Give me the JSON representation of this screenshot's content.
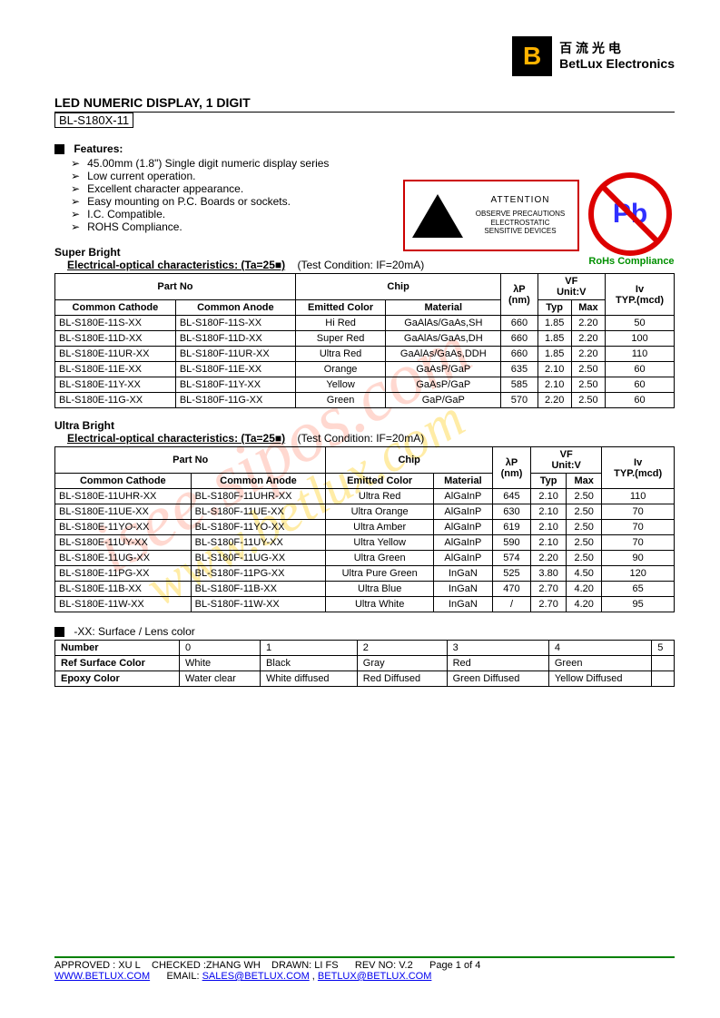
{
  "logo": {
    "letter": "B",
    "cn": "百 流 光 电",
    "en": "BetLux Electronics"
  },
  "title": "LED NUMERIC DISPLAY, 1 DIGIT",
  "part_box": "BL-S180X-11",
  "features_head": "Features:",
  "features": [
    "45.00mm (1.8\") Single digit numeric display series",
    "Low current operation.",
    "Excellent character appearance.",
    "Easy mounting on P.C. Boards or sockets.",
    "I.C. Compatible.",
    "ROHS Compliance."
  ],
  "esd": {
    "attention": "ATTENTION",
    "line1": "OBSERVE PRECAUTIONS",
    "line2": "ELECTROSTATIC",
    "line3": "SENSITIVE DEVICES"
  },
  "pb": {
    "symbol": "Pb",
    "label": "RoHs Compliance"
  },
  "super_head": "Super Bright",
  "eo_label": "Electrical-optical characteristics: (Ta=25■)",
  "cond_label": "(Test Condition: IF=20mA)",
  "thead": {
    "partno": "Part No",
    "cc": "Common Cathode",
    "ca": "Common Anode",
    "chip": "Chip",
    "color": "Emitted Color",
    "material": "Material",
    "lp": "λP",
    "nm": "(nm)",
    "vf": "VF",
    "unitv": "Unit:V",
    "typ": "Typ",
    "max": "Max",
    "iv": "Iv",
    "ivunit": "TYP.(mcd)"
  },
  "super_rows": [
    {
      "cc": "BL-S180E-11S-XX",
      "ca": "BL-S180F-11S-XX",
      "color": "Hi Red",
      "mat": "GaAlAs/GaAs,SH",
      "lp": "660",
      "typ": "1.85",
      "max": "2.20",
      "iv": "50"
    },
    {
      "cc": "BL-S180E-11D-XX",
      "ca": "BL-S180F-11D-XX",
      "color": "Super Red",
      "mat": "GaAlAs/GaAs,DH",
      "lp": "660",
      "typ": "1.85",
      "max": "2.20",
      "iv": "100"
    },
    {
      "cc": "BL-S180E-11UR-XX",
      "ca": "BL-S180F-11UR-XX",
      "color": "Ultra Red",
      "mat": "GaAlAs/GaAs,DDH",
      "lp": "660",
      "typ": "1.85",
      "max": "2.20",
      "iv": "110"
    },
    {
      "cc": "BL-S180E-11E-XX",
      "ca": "BL-S180F-11E-XX",
      "color": "Orange",
      "mat": "GaAsP/GaP",
      "lp": "635",
      "typ": "2.10",
      "max": "2.50",
      "iv": "60"
    },
    {
      "cc": "BL-S180E-11Y-XX",
      "ca": "BL-S180F-11Y-XX",
      "color": "Yellow",
      "mat": "GaAsP/GaP",
      "lp": "585",
      "typ": "2.10",
      "max": "2.50",
      "iv": "60"
    },
    {
      "cc": "BL-S180E-11G-XX",
      "ca": "BL-S180F-11G-XX",
      "color": "Green",
      "mat": "GaP/GaP",
      "lp": "570",
      "typ": "2.20",
      "max": "2.50",
      "iv": "60"
    }
  ],
  "ultra_head": "Ultra Bright",
  "ultra_rows": [
    {
      "cc": "BL-S180E-11UHR-XX",
      "ca": "BL-S180F-11UHR-XX",
      "color": "Ultra Red",
      "mat": "AlGaInP",
      "lp": "645",
      "typ": "2.10",
      "max": "2.50",
      "iv": "110"
    },
    {
      "cc": "BL-S180E-11UE-XX",
      "ca": "BL-S180F-11UE-XX",
      "color": "Ultra Orange",
      "mat": "AlGaInP",
      "lp": "630",
      "typ": "2.10",
      "max": "2.50",
      "iv": "70"
    },
    {
      "cc": "BL-S180E-11YO-XX",
      "ca": "BL-S180F-11YO-XX",
      "color": "Ultra Amber",
      "mat": "AlGaInP",
      "lp": "619",
      "typ": "2.10",
      "max": "2.50",
      "iv": "70"
    },
    {
      "cc": "BL-S180E-11UY-XX",
      "ca": "BL-S180F-11UY-XX",
      "color": "Ultra Yellow",
      "mat": "AlGaInP",
      "lp": "590",
      "typ": "2.10",
      "max": "2.50",
      "iv": "70"
    },
    {
      "cc": "BL-S180E-11UG-XX",
      "ca": "BL-S180F-11UG-XX",
      "color": "Ultra Green",
      "mat": "AlGaInP",
      "lp": "574",
      "typ": "2.20",
      "max": "2.50",
      "iv": "90"
    },
    {
      "cc": "BL-S180E-11PG-XX",
      "ca": "BL-S180F-11PG-XX",
      "color": "Ultra Pure Green",
      "mat": "InGaN",
      "lp": "525",
      "typ": "3.80",
      "max": "4.50",
      "iv": "120"
    },
    {
      "cc": "BL-S180E-11B-XX",
      "ca": "BL-S180F-11B-XX",
      "color": "Ultra Blue",
      "mat": "InGaN",
      "lp": "470",
      "typ": "2.70",
      "max": "4.20",
      "iv": "65"
    },
    {
      "cc": "BL-S180E-11W-XX",
      "ca": "BL-S180F-11W-XX",
      "color": "Ultra White",
      "mat": "InGaN",
      "lp": "/",
      "typ": "2.70",
      "max": "4.20",
      "iv": "95"
    }
  ],
  "lens_head": "-XX: Surface / Lens color",
  "lens": {
    "rows": [
      "Number",
      "Ref Surface Color",
      "Epoxy Color"
    ],
    "cols": [
      "0",
      "1",
      "2",
      "3",
      "4",
      "5"
    ],
    "surface": [
      "White",
      "Black",
      "Gray",
      "Red",
      "Green",
      ""
    ],
    "epoxy": [
      "Water clear",
      "White diffused",
      "Red Diffused",
      "Green Diffused",
      "Yellow Diffused",
      ""
    ]
  },
  "footer": {
    "approved": "APPROVED : XU L",
    "checked": "CHECKED :ZHANG WH",
    "drawn": "DRAWN: LI FS",
    "rev": "REV NO: V.2",
    "page": "Page 1 of 4",
    "url": "WWW.BETLUX.COM",
    "email_label": "EMAIL:",
    "email1": "SALES@BETLUX.COM",
    "email2": "BETLUX@BETLUX.COM"
  },
  "watermark1": "isee.sipos.com",
  "watermark2": "www.betlux.com"
}
